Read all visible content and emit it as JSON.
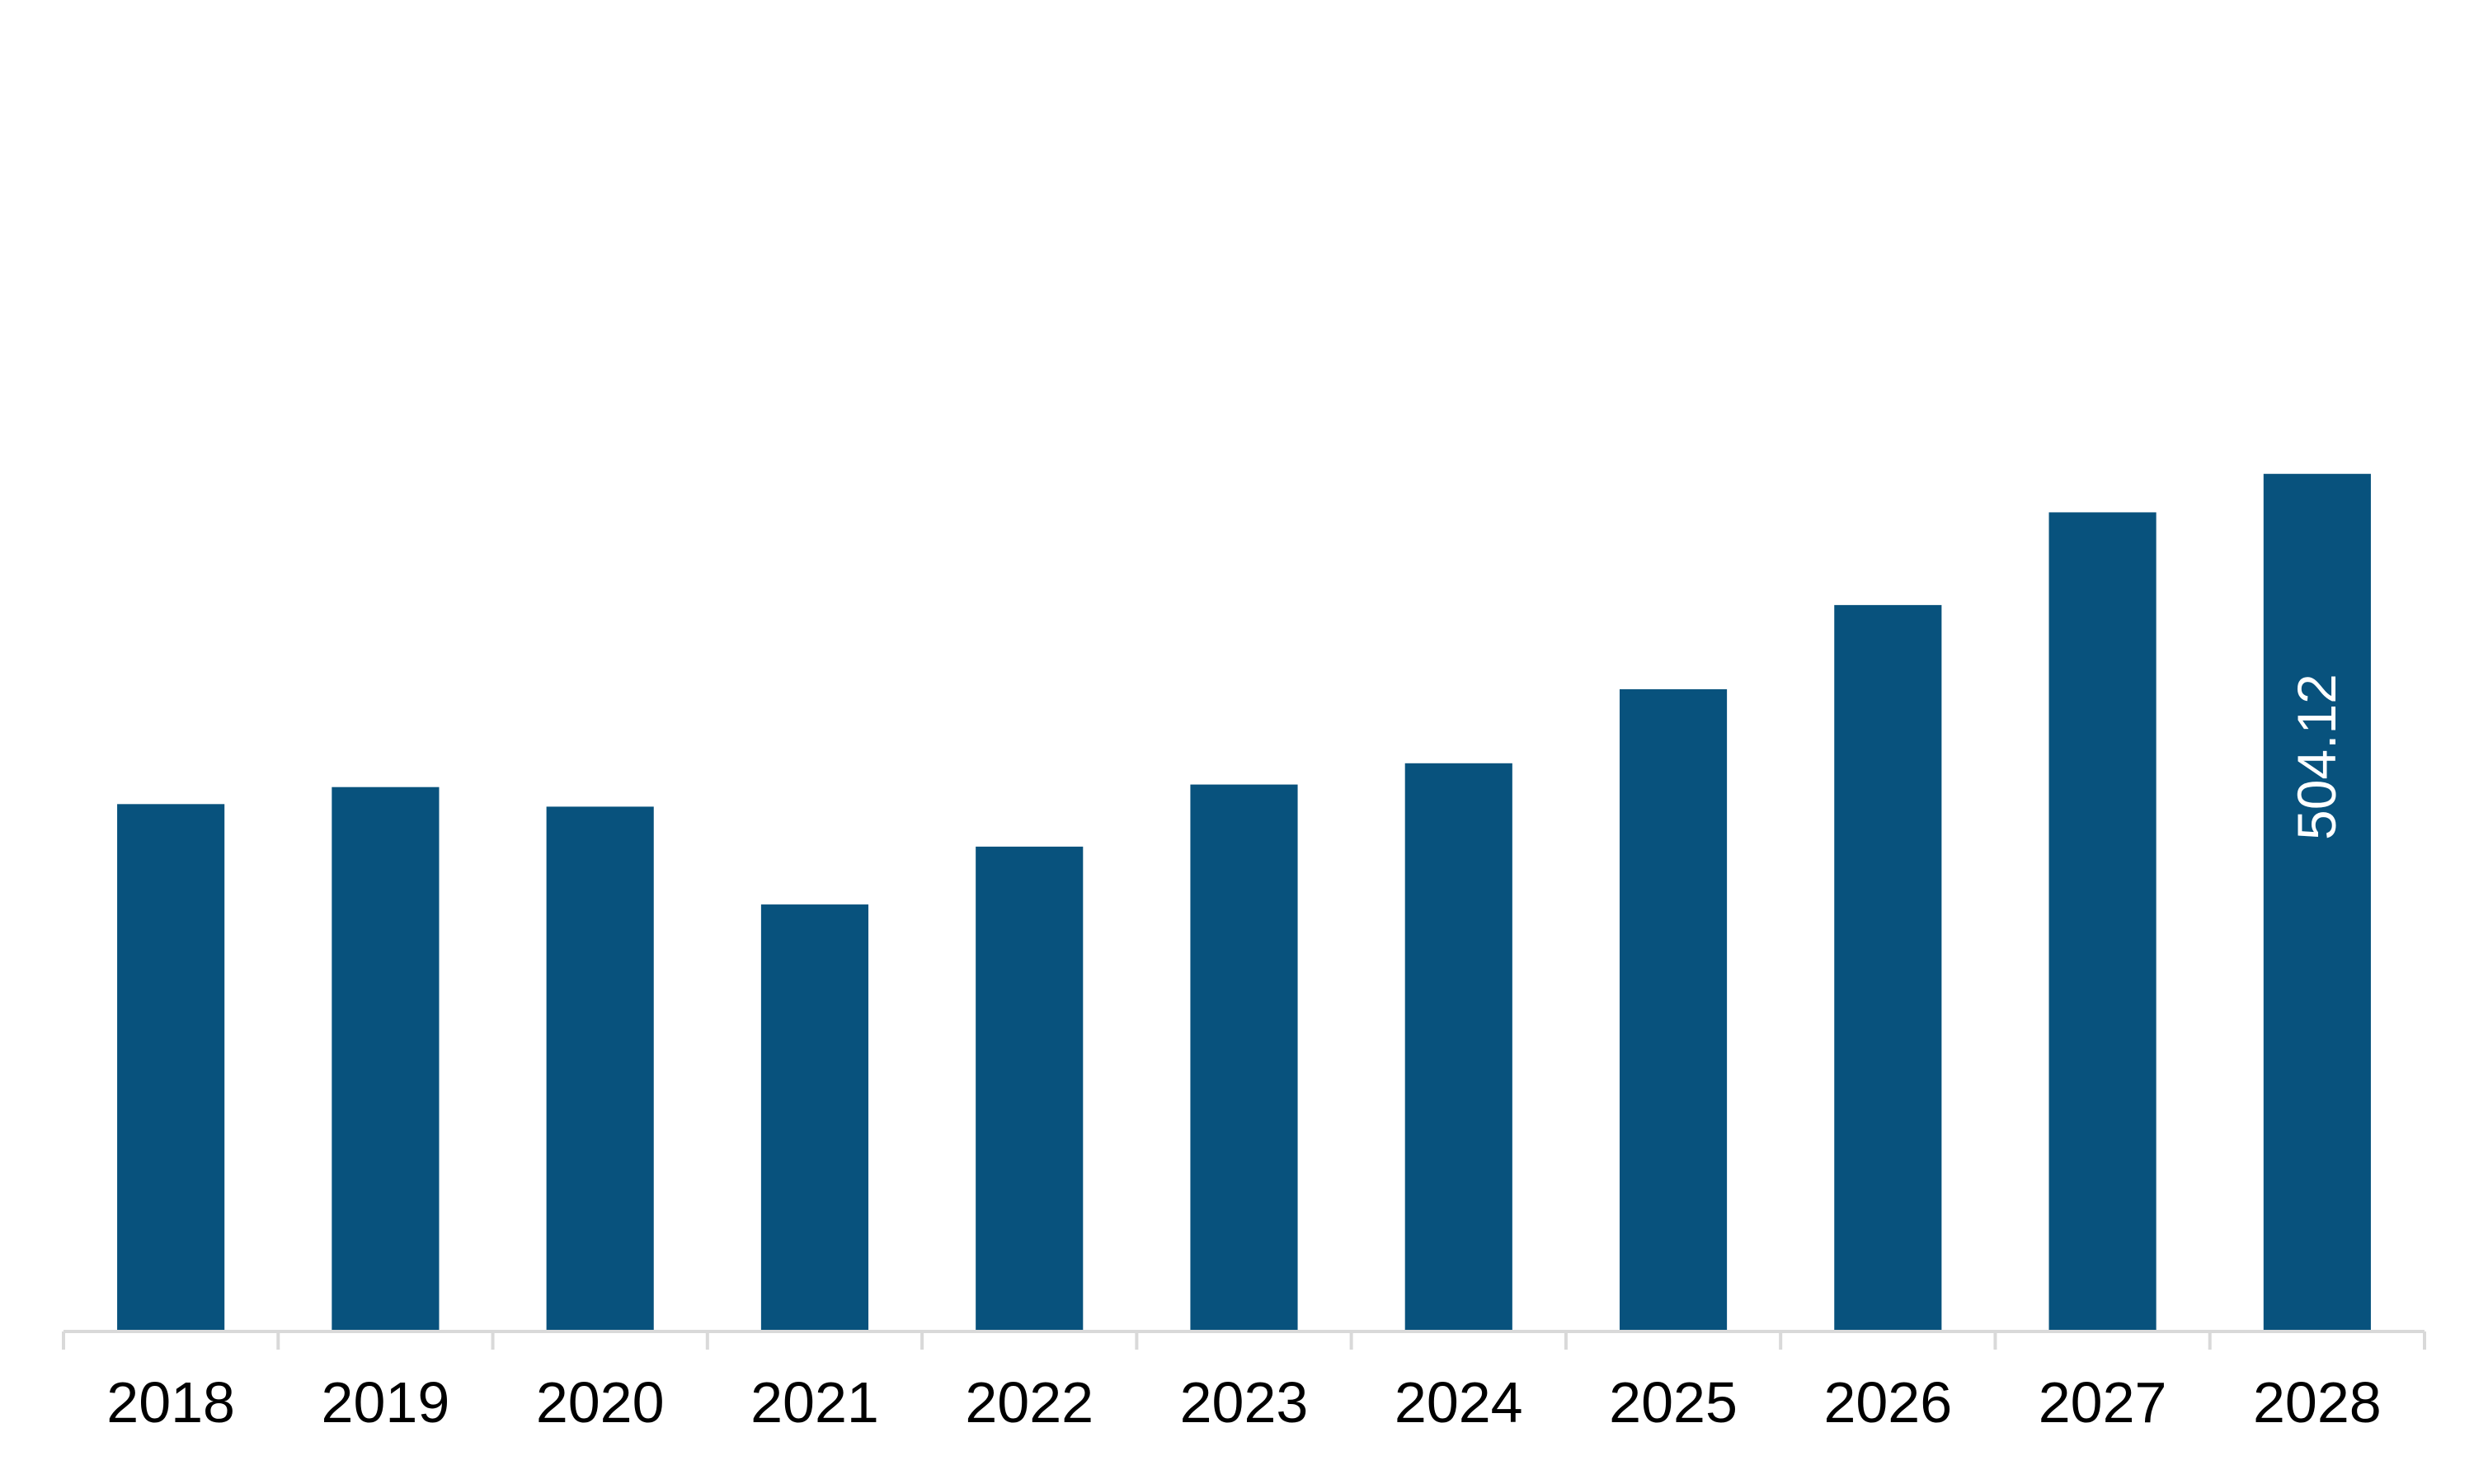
{
  "chart_data": {
    "type": "bar",
    "categories": [
      "2018",
      "2019",
      "2020",
      "2021",
      "2022",
      "2023",
      "2024",
      "2025",
      "2026",
      "2027",
      "2028"
    ],
    "values": [
      310,
      320,
      308.5,
      251,
      285,
      321.5,
      334,
      377.5,
      427,
      481.5,
      504.12
    ],
    "data_labels": [
      null,
      null,
      null,
      null,
      null,
      null,
      null,
      null,
      null,
      null,
      "504.12"
    ],
    "ylim": [
      0,
      630
    ],
    "bar_color": "#08527d",
    "axis_color": "#d9d9d9",
    "grid": false,
    "legend": false
  }
}
